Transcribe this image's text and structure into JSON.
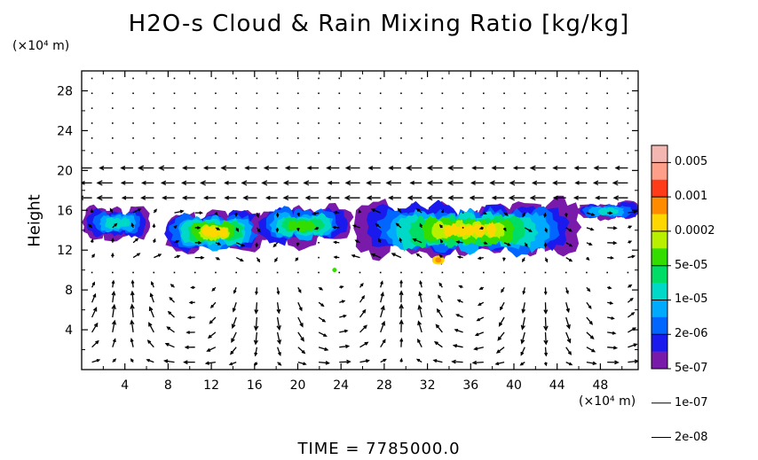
{
  "chart_data": {
    "type": "heatmap",
    "title": "H2O-s Cloud & Rain Mixing Ratio [kg/kg]",
    "ylabel": "Height",
    "x_unit": "(×10⁴ m)",
    "y_unit": "(×10⁴ m)",
    "x_ticks": [
      "4",
      "8",
      "12",
      "16",
      "20",
      "24",
      "28",
      "32",
      "36",
      "40",
      "44",
      "48"
    ],
    "y_ticks": [
      "4",
      "8",
      "12",
      "16",
      "20",
      "24",
      "28"
    ],
    "xlim": [
      0,
      51.5
    ],
    "ylim": [
      0,
      30
    ],
    "colorbar": {
      "labels": [
        "0.005",
        "0.001",
        "0.0002",
        "5e-05",
        "1e-05",
        "2e-06",
        "5e-07",
        "1e-07",
        "2e-08"
      ],
      "colors": [
        "#f4b6b0",
        "#ff9f8a",
        "#ff3b1a",
        "#ff8c00",
        "#ffd700",
        "#b8f000",
        "#33dd00",
        "#00dd66",
        "#00d8c8",
        "#00aaff",
        "#0066ff",
        "#1a1aee",
        "#7a1aaa"
      ]
    },
    "cloud_layers": [
      {
        "x_start": 0.3,
        "x_end": 6.0,
        "y_bottom": 13.0,
        "y_top": 16.4,
        "peak_level": 1
      },
      {
        "x_start": 8.0,
        "x_end": 16.5,
        "y_bottom": 11.5,
        "y_top": 16.2,
        "peak_level": 5
      },
      {
        "x_start": 16.5,
        "x_end": 24.5,
        "y_bottom": 12.5,
        "y_top": 16.5,
        "peak_level": 3
      },
      {
        "x_start": 26.0,
        "x_end": 45.5,
        "y_bottom": 11.2,
        "y_top": 16.8,
        "peak_level": 5
      },
      {
        "x_start": 46.0,
        "x_end": 51.5,
        "y_bottom": 15.0,
        "y_top": 16.8,
        "peak_level": 1
      }
    ],
    "hotspot": {
      "x": 33.0,
      "y": 11.0,
      "label": "0.0002"
    },
    "time_label": "TIME  =  7785000.0"
  }
}
